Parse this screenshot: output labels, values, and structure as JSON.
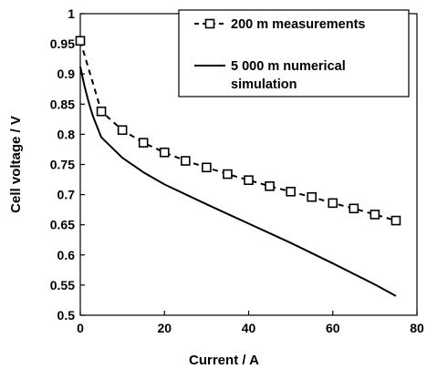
{
  "chart_data": {
    "type": "line",
    "xlabel": "Current / A",
    "ylabel": "Cell voltage / V",
    "xlim": [
      0,
      80
    ],
    "ylim": [
      0.5,
      1
    ],
    "x_ticks": [
      0,
      20,
      40,
      60,
      80
    ],
    "y_ticks": [
      0.5,
      0.55,
      0.6,
      0.65,
      0.7,
      0.75,
      0.8,
      0.85,
      0.9,
      0.95,
      1
    ],
    "x_tick_labels": [
      "0",
      "20",
      "40",
      "60",
      "80"
    ],
    "y_tick_labels": [
      "0.5",
      "0.55",
      "0.6",
      "0.65",
      "0.7",
      "0.75",
      "0.8",
      "0.85",
      "0.9",
      "0.95",
      "1"
    ],
    "grid": false,
    "legend_position": "top-right",
    "series": [
      {
        "name": "200 m measurements",
        "style": "dashed-square-markers",
        "color": "#000000",
        "points": [
          [
            0,
            0.955
          ],
          [
            5,
            0.838
          ],
          [
            10,
            0.807
          ],
          [
            15,
            0.786
          ],
          [
            20,
            0.77
          ],
          [
            25,
            0.756
          ],
          [
            30,
            0.745
          ],
          [
            35,
            0.734
          ],
          [
            40,
            0.724
          ],
          [
            45,
            0.714
          ],
          [
            50,
            0.705
          ],
          [
            55,
            0.696
          ],
          [
            60,
            0.686
          ],
          [
            65,
            0.677
          ],
          [
            70,
            0.667
          ],
          [
            75,
            0.657
          ]
        ]
      },
      {
        "name": "5 000 m numerical\nsimulation",
        "style": "solid",
        "color": "#000000",
        "points": [
          [
            0,
            0.912
          ],
          [
            1,
            0.88
          ],
          [
            2,
            0.853
          ],
          [
            3,
            0.83
          ],
          [
            5,
            0.795
          ],
          [
            10,
            0.761
          ],
          [
            15,
            0.737
          ],
          [
            20,
            0.717
          ],
          [
            30,
            0.684
          ],
          [
            40,
            0.652
          ],
          [
            50,
            0.62
          ],
          [
            60,
            0.586
          ],
          [
            70,
            0.551
          ],
          [
            75,
            0.532
          ]
        ]
      }
    ]
  }
}
